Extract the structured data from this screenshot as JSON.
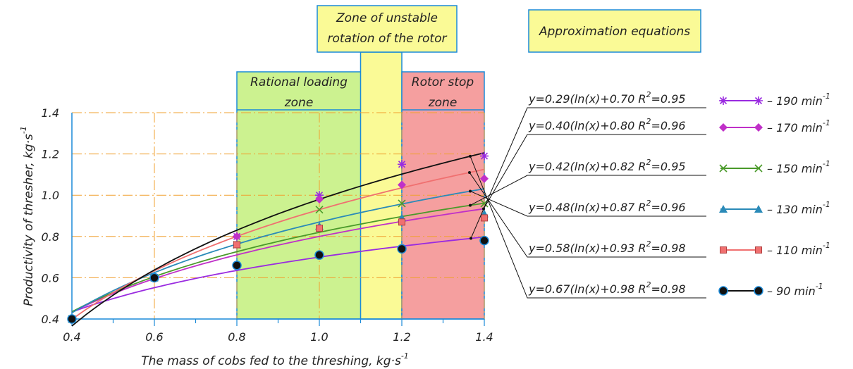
{
  "annotations": {
    "unstable_zone_line1": "Zone of unstable",
    "unstable_zone_line2": "rotation of the rotor",
    "approx_title": "Approximation equations",
    "rational_line1": "Rational loading",
    "rational_line2": "zone",
    "stop_line1": "Rotor stop",
    "stop_line2": "zone"
  },
  "axes": {
    "x_label": "The mass of cobs fed to the threshing, kg·s",
    "x_label_sup": "-1",
    "y_label": "Productivity of thresher, kg·s",
    "y_label_sup": "-1"
  },
  "chart_data": {
    "type": "scatter",
    "xlim": [
      0.4,
      1.4
    ],
    "ylim": [
      0.4,
      1.4
    ],
    "x_ticks": [
      "0.4",
      "0.6",
      "0.8",
      "1.0",
      "1.2",
      "1.4"
    ],
    "y_ticks": [
      "0.4",
      "0.6",
      "0.8",
      "1.0",
      "1.2",
      "1.4"
    ],
    "grid": true,
    "zones": [
      {
        "name": "rational",
        "x": [
          0.8,
          1.2
        ],
        "color": "#ccf290"
      },
      {
        "name": "unstable",
        "x": [
          1.1,
          1.2
        ],
        "color": "#fafa96"
      },
      {
        "name": "stop",
        "x": [
          1.2,
          1.4
        ],
        "color": "#f59f9f"
      }
    ],
    "series": [
      {
        "name": "190",
        "marker": "star",
        "color": "#9a2be0",
        "x": [
          0.4,
          0.6,
          0.8,
          1.0,
          1.2,
          1.4
        ],
        "y": [
          0.4,
          0.6,
          0.8,
          1.0,
          1.15,
          1.19
        ],
        "fit": {
          "a": 0.29,
          "b": 0.7
        },
        "equation": "y=0.29(ln(x)+0.70",
        "r2": "=0.95"
      },
      {
        "name": "170",
        "marker": "diamond",
        "color": "#c030c8",
        "x": [
          0.4,
          0.6,
          0.8,
          1.0,
          1.2,
          1.4
        ],
        "y": [
          0.4,
          0.6,
          0.8,
          0.98,
          1.05,
          1.08
        ],
        "fit": {
          "a": 0.4,
          "b": 0.8
        },
        "equation": "y=0.40(ln(x)+0.80",
        "r2": "=0.96"
      },
      {
        "name": "150",
        "marker": "x",
        "color": "#4a9a2a",
        "x": [
          0.4,
          0.6,
          0.8,
          1.0,
          1.2,
          1.4
        ],
        "y": [
          0.4,
          0.6,
          0.76,
          0.93,
          0.96,
          0.96
        ],
        "fit": {
          "a": 0.42,
          "b": 0.82
        },
        "equation": "y=0.42(ln(x)+0.82",
        "r2": "=0.95"
      },
      {
        "name": "130",
        "marker": "triangle",
        "color": "#2a8ab8",
        "x": [
          0.4,
          0.6,
          0.8,
          1.0,
          1.2,
          1.4
        ],
        "y": [
          0.4,
          0.6,
          0.76,
          0.85,
          0.89,
          0.91
        ],
        "fit": {
          "a": 0.48,
          "b": 0.87
        },
        "equation": "y=0.48(ln(x)+0.87",
        "r2": "=0.96"
      },
      {
        "name": "110",
        "marker": "square",
        "color": "#f07070",
        "x": [
          0.4,
          0.6,
          0.8,
          1.0,
          1.2,
          1.4
        ],
        "y": [
          0.4,
          0.6,
          0.76,
          0.84,
          0.87,
          0.89
        ],
        "fit": {
          "a": 0.58,
          "b": 0.93
        },
        "equation": "y=0.58(ln(x)+0.93",
        "r2": "=0.98"
      },
      {
        "name": "90",
        "marker": "circle",
        "color": "#111111",
        "x": [
          0.4,
          0.6,
          0.8,
          1.0,
          1.2,
          1.4
        ],
        "y": [
          0.4,
          0.6,
          0.66,
          0.71,
          0.74,
          0.78
        ],
        "fit": {
          "a": 0.67,
          "b": 0.98
        },
        "equation": "y=0.67(ln(x)+0.98",
        "r2": "=0.98"
      }
    ],
    "legend_units": {
      "text": "min",
      "sup": "-1",
      "dash": "–"
    }
  }
}
